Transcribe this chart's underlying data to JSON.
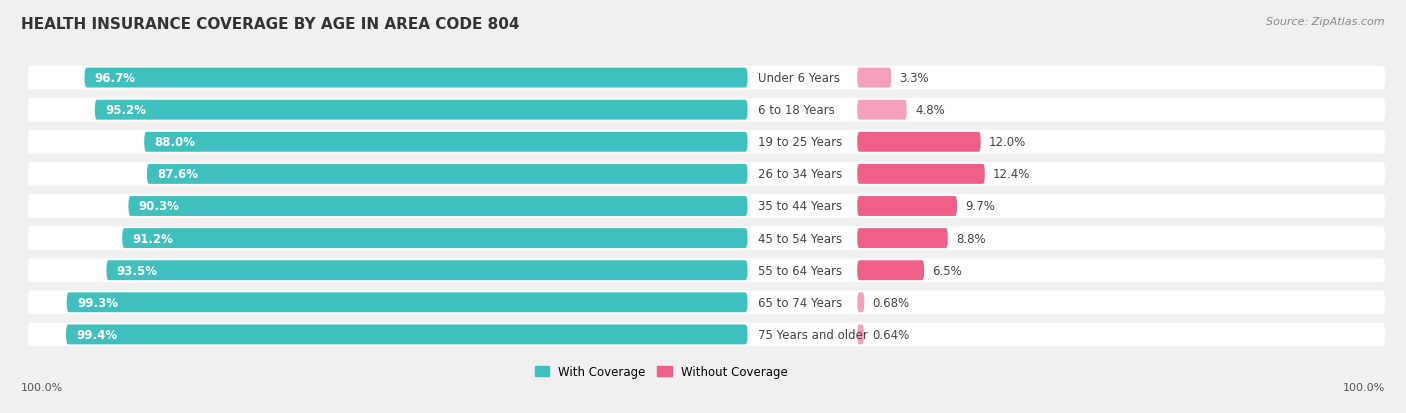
{
  "title": "HEALTH INSURANCE COVERAGE BY AGE IN AREA CODE 804",
  "source": "Source: ZipAtlas.com",
  "categories": [
    "Under 6 Years",
    "6 to 18 Years",
    "19 to 25 Years",
    "26 to 34 Years",
    "35 to 44 Years",
    "45 to 54 Years",
    "55 to 64 Years",
    "65 to 74 Years",
    "75 Years and older"
  ],
  "with_coverage": [
    96.7,
    95.2,
    88.0,
    87.6,
    90.3,
    91.2,
    93.5,
    99.3,
    99.4
  ],
  "without_coverage": [
    3.3,
    4.8,
    12.0,
    12.4,
    9.7,
    8.8,
    6.5,
    0.68,
    0.64
  ],
  "with_labels": [
    "96.7%",
    "95.2%",
    "88.0%",
    "87.6%",
    "90.3%",
    "91.2%",
    "93.5%",
    "99.3%",
    "99.4%"
  ],
  "without_labels": [
    "3.3%",
    "4.8%",
    "12.0%",
    "12.4%",
    "9.7%",
    "8.8%",
    "6.5%",
    "0.68%",
    "0.64%"
  ],
  "color_with": "#40BFBF",
  "color_without_dark": "#EE6088",
  "color_without_light": "#F4A0BC",
  "bg_color": "#f0f0f0",
  "title_color": "#333333",
  "source_color": "#888888",
  "label_color_white": "#ffffff",
  "label_color_dark": "#444444",
  "axis_label_color": "#555555",
  "footer_value": "100.0%",
  "legend_with": "With Coverage",
  "legend_without": "Without Coverage",
  "without_dark_threshold": 6.0
}
